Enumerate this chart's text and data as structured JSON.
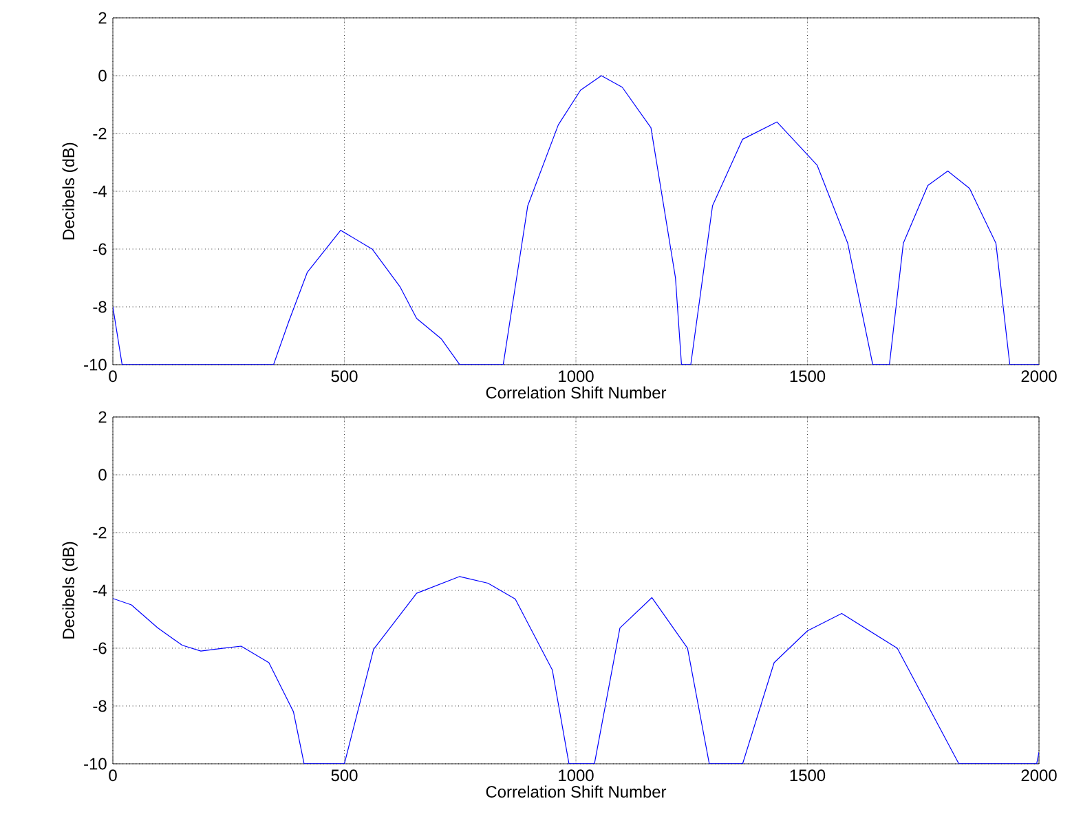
{
  "chart_data": [
    {
      "type": "line",
      "xlabel": "Correlation Shift Number",
      "ylabel": "Decibels (dB)",
      "xlim": [
        0,
        2000
      ],
      "ylim": [
        -10,
        2
      ],
      "xticks": [
        0,
        500,
        1000,
        1500,
        2000
      ],
      "yticks": [
        -10,
        -8,
        -6,
        -4,
        -2,
        0,
        2
      ],
      "grid": true,
      "series": [
        {
          "color": "#0000ff",
          "x": [
            0,
            20,
            347,
            380,
            420,
            492,
            560,
            620,
            656,
            709,
            749,
            843,
            896,
            962,
            1010,
            1055,
            1100,
            1162,
            1215,
            1228,
            1248,
            1295,
            1360,
            1434,
            1521,
            1587,
            1641,
            1677,
            1707,
            1760,
            1803,
            1850,
            1907,
            1937,
            2000
          ],
          "values": [
            -8,
            -10,
            -10,
            -8.5,
            -6.8,
            -5.35,
            -6.0,
            -7.3,
            -8.4,
            -9.1,
            -10,
            -10,
            -4.5,
            -1.7,
            -0.5,
            0,
            -0.4,
            -1.8,
            -7,
            -10,
            -10,
            -4.5,
            -2.2,
            -1.6,
            -3.1,
            -5.8,
            -10,
            -10,
            -5.8,
            -3.8,
            -3.3,
            -3.9,
            -5.8,
            -10,
            -10
          ]
        }
      ]
    },
    {
      "type": "line",
      "xlabel": "Correlation Shift Number",
      "ylabel": "Decibels (dB)",
      "xlim": [
        0,
        2000
      ],
      "ylim": [
        -10,
        2
      ],
      "xticks": [
        0,
        500,
        1000,
        1500,
        2000
      ],
      "yticks": [
        -10,
        -8,
        -6,
        -4,
        -2,
        0,
        2
      ],
      "grid": true,
      "series": [
        {
          "color": "#0000ff",
          "x": [
            0,
            40,
            97,
            150,
            190,
            240,
            277,
            337,
            390,
            413,
            500,
            563,
            656,
            749,
            810,
            869,
            949,
            985,
            1040,
            1095,
            1164,
            1241,
            1288,
            1360,
            1428,
            1500,
            1574,
            1694,
            1827,
            1995,
            2000
          ],
          "values": [
            -4.28,
            -4.5,
            -5.3,
            -5.9,
            -6.1,
            -6.0,
            -5.93,
            -6.5,
            -8.2,
            -10,
            -10,
            -6.04,
            -4.1,
            -3.52,
            -3.75,
            -4.3,
            -6.75,
            -10,
            -10,
            -5.3,
            -4.25,
            -6.0,
            -10,
            -10,
            -6.5,
            -5.4,
            -4.8,
            -6.0,
            -10,
            -10,
            -9.6
          ]
        }
      ]
    }
  ]
}
